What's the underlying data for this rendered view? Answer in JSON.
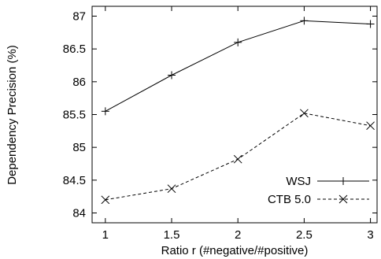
{
  "chart_data": {
    "type": "line",
    "title": "",
    "xlabel": "Ratio r (#negative/#positive)",
    "ylabel": "Dependency Precision (%)",
    "x": [
      1,
      1.5,
      2,
      2.5,
      3
    ],
    "x_tick_labels": [
      "1",
      "1.5",
      "2",
      "2.5",
      "3"
    ],
    "xlim": [
      0.9,
      3.05
    ],
    "y_ticks": [
      84,
      84.5,
      85,
      85.5,
      86,
      86.5,
      87
    ],
    "y_tick_labels": [
      "84",
      "84.5",
      "85",
      "85.5",
      "86",
      "86.5",
      "87"
    ],
    "ylim": [
      83.85,
      87.15
    ],
    "grid": false,
    "legend_position": "bottom-right",
    "series": [
      {
        "name": "WSJ",
        "values": [
          85.55,
          86.1,
          86.6,
          86.93,
          86.88
        ],
        "line_style": "solid",
        "marker": "plus",
        "color": "#000000"
      },
      {
        "name": "CTB 5.0",
        "values": [
          84.2,
          84.37,
          84.82,
          85.52,
          85.33
        ],
        "line_style": "dashed",
        "marker": "cross",
        "color": "#000000"
      }
    ]
  }
}
